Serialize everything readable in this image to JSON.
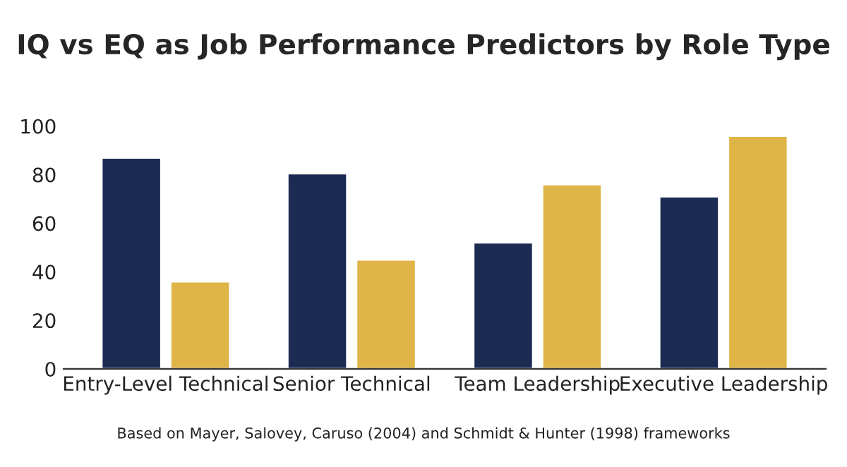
{
  "chart_data": {
    "type": "bar",
    "title": "IQ vs EQ as Job Performance Predictors by Role Type",
    "categories": [
      "Entry-Level Technical",
      "Senior Technical",
      "Team Leadership",
      "Executive Leadership"
    ],
    "series": [
      {
        "color": "#1c2b52",
        "values": [
          87,
          80.5,
          52,
          71
        ]
      },
      {
        "color": "#dfb547",
        "values": [
          36,
          45,
          76,
          96
        ]
      }
    ],
    "ylim": [
      0,
      100
    ],
    "yticks": [
      0,
      20,
      40,
      60,
      80,
      100
    ],
    "grid": false,
    "legend": false,
    "annotations": [
      "Based on Mayer, Salovey, Caruso (2004) and Schmidt & Hunter (1998) frameworks"
    ]
  }
}
